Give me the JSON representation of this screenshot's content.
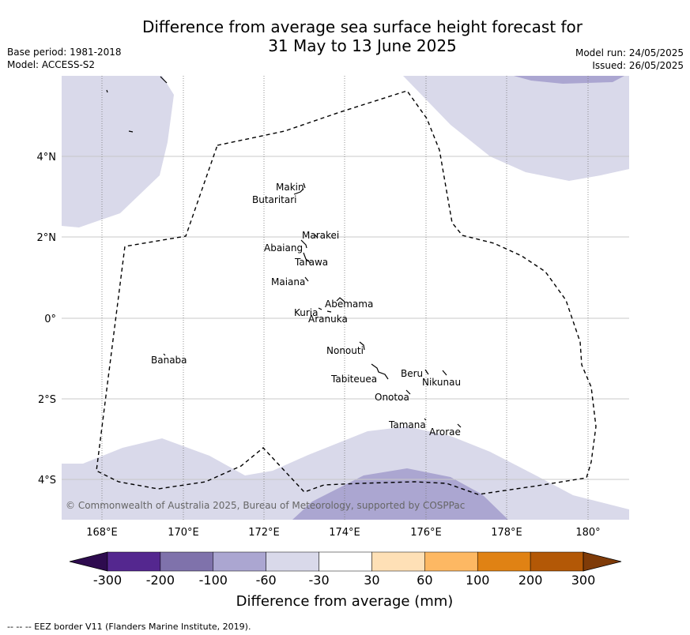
{
  "header": {
    "title_line1": "Difference from average sea surface height forecast for",
    "title_line2": "31 May to 13 June 2025",
    "base_period": "Base period: 1981-2018",
    "model": "Model: ACCESS-S2",
    "model_run": "Model run: 24/05/2025",
    "issued": "Issued: 26/05/2025"
  },
  "map": {
    "lat_labels": [
      "4°N",
      "2°N",
      "0°",
      "2°S",
      "4°S"
    ],
    "lon_labels": [
      "168°E",
      "170°E",
      "172°E",
      "174°E",
      "176°E",
      "178°E",
      "180°"
    ],
    "islands": [
      "Makin",
      "Butaritari",
      "Marakei",
      "Abaiang",
      "Tarawa",
      "Maiana",
      "Abemama",
      "Kuria",
      "Aranuka",
      "Banaba",
      "Nonouti",
      "Tabiteuea",
      "Beru",
      "Nikunau",
      "Onotoa",
      "Tamana",
      "Arorae"
    ],
    "copyright": "© Commonwealth of Australia 2025, Bureau of Meteorology, supported by COSPPac"
  },
  "colorbar": {
    "ticks": [
      "-300",
      "-200",
      "-100",
      "-60",
      "-30",
      "30",
      "60",
      "100",
      "200",
      "300"
    ],
    "colors": [
      "#2e0b4f",
      "#54278f",
      "#7f72ab",
      "#aba6d1",
      "#d9d9ea",
      "#ffffff",
      "#fee0b6",
      "#fdb863",
      "#e08214",
      "#b35806",
      "#7f3b08"
    ],
    "title": "Difference from average (mm)"
  },
  "footer": {
    "legend": "--  --  -- EEZ border V11 (Flanders Marine Institute, 2019)."
  }
}
